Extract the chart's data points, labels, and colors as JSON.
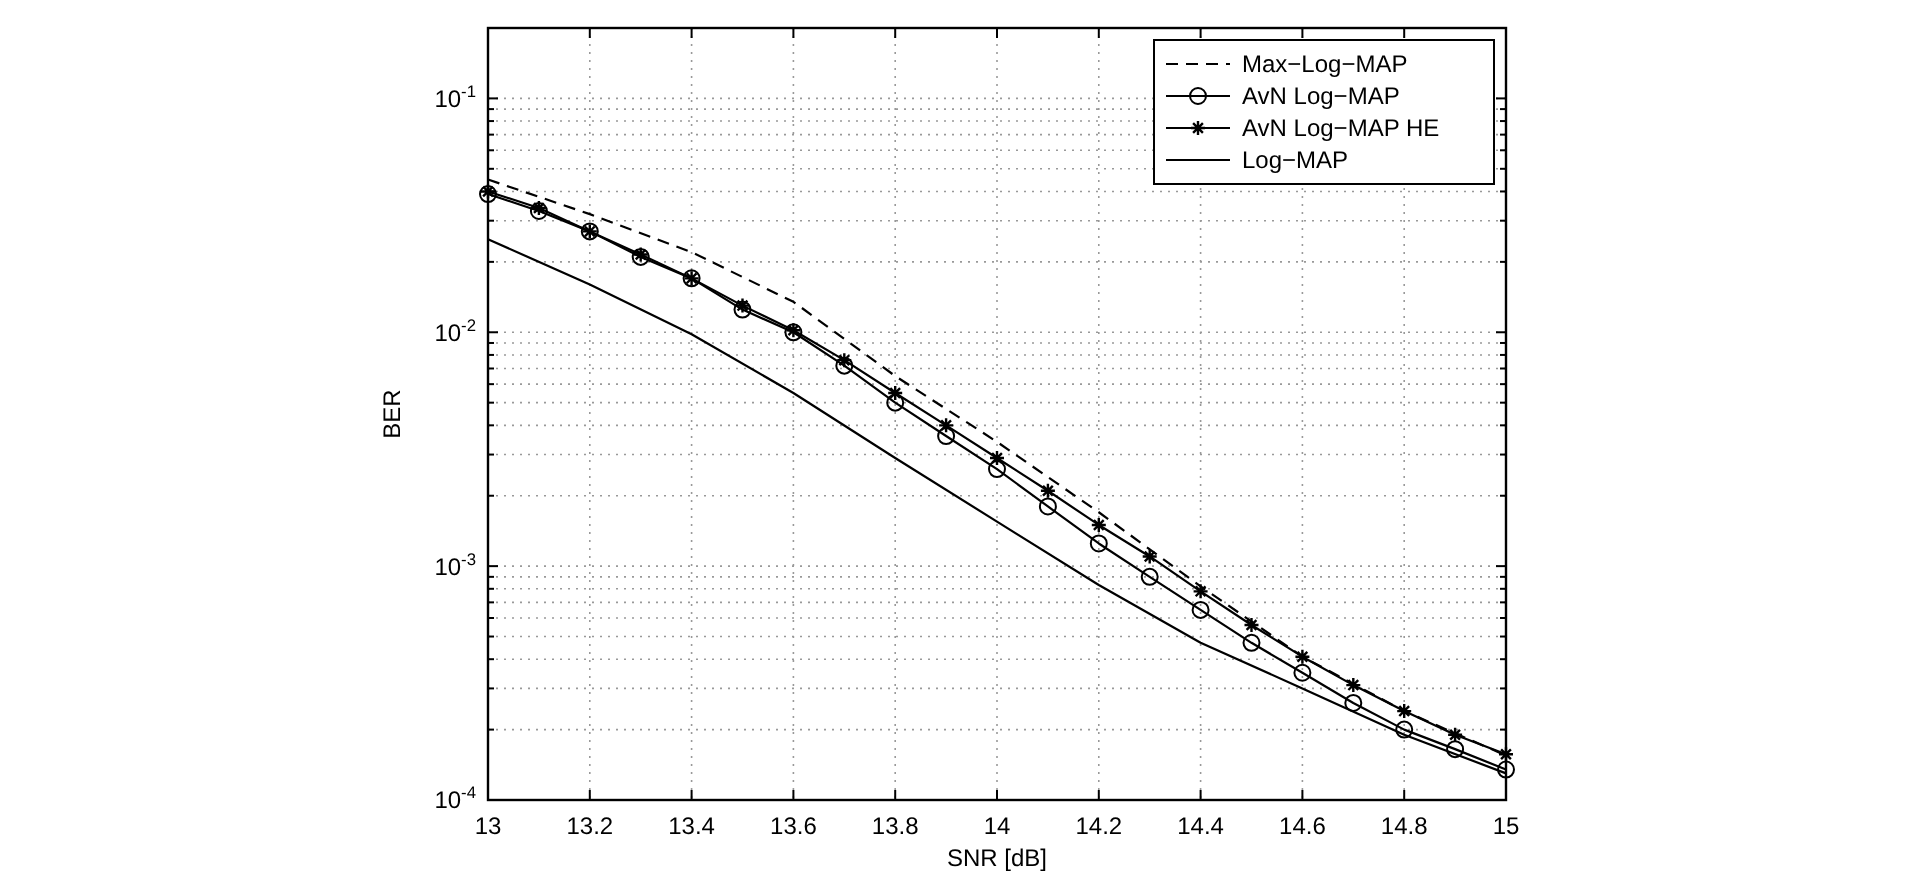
{
  "chart_data": {
    "type": "line",
    "xlabel": "SNR [dB]",
    "ylabel": "BER",
    "log": "y",
    "grid": true,
    "legend": "top right",
    "xlim": [
      13,
      15
    ],
    "ylim": [
      0.0001,
      0.2
    ],
    "xticks": [
      13,
      13.2,
      13.4,
      13.6,
      13.8,
      14,
      14.2,
      14.4,
      14.6,
      14.8,
      15
    ],
    "yticks": [
      {
        "value": 0.0001,
        "label": "10$^{-4}$"
      },
      {
        "value": 0.0002,
        "label": null
      },
      {
        "value": 0.0003,
        "label": null
      },
      {
        "value": 0.0004,
        "label": null
      },
      {
        "value": 0.0005,
        "label": null
      },
      {
        "value": 0.0006,
        "label": null
      },
      {
        "value": 0.0007,
        "label": null
      },
      {
        "value": 0.0008,
        "label": null
      },
      {
        "value": 0.0009,
        "label": null
      },
      {
        "value": 0.001,
        "label": "10$^{-3}$"
      },
      {
        "value": 0.002,
        "label": null
      },
      {
        "value": 0.003,
        "label": null
      },
      {
        "value": 0.004,
        "label": null
      },
      {
        "value": 0.005,
        "label": null
      },
      {
        "value": 0.006,
        "label": null
      },
      {
        "value": 0.007,
        "label": null
      },
      {
        "value": 0.008,
        "label": null
      },
      {
        "value": 0.009,
        "label": null
      },
      {
        "value": 0.01,
        "label": "10$^{-2}$"
      },
      {
        "value": 0.02,
        "label": null
      },
      {
        "value": 0.03,
        "label": null
      },
      {
        "value": 0.04,
        "label": null
      },
      {
        "value": 0.05,
        "label": null
      },
      {
        "value": 0.06,
        "label": null
      },
      {
        "value": 0.07,
        "label": null
      },
      {
        "value": 0.08,
        "label": null
      },
      {
        "value": 0.09,
        "label": null
      },
      {
        "value": 0.1,
        "label": "10$^{-1}$"
      },
      {
        "value": 0.2,
        "label": null
      }
    ],
    "series": [
      {
        "name": "Max−Log−MAP",
        "color": "#000000",
        "line_style": "dashed",
        "marker": "none",
        "x": [
          13,
          13.2,
          13.4,
          13.6,
          13.8,
          14,
          14.2,
          14.4,
          14.6,
          14.8,
          15
        ],
        "values": [
          0.045,
          0.032,
          0.022,
          0.0135,
          0.0065,
          0.0034,
          0.0017,
          0.00082,
          0.00041,
          0.00024,
          0.000155
        ]
      },
      {
        "name": "AvN Log−MAP",
        "color": "#000000",
        "line_style": "solid",
        "marker": "circle",
        "x": [
          13,
          13.1,
          13.2,
          13.3,
          13.4,
          13.5,
          13.6,
          13.7,
          13.8,
          13.9,
          14,
          14.1,
          14.2,
          14.3,
          14.4,
          14.5,
          14.6,
          14.7,
          14.8,
          14.9,
          15
        ],
        "values": [
          0.039,
          0.033,
          0.027,
          0.021,
          0.017,
          0.0125,
          0.01,
          0.0072,
          0.005,
          0.0036,
          0.0026,
          0.0018,
          0.00125,
          0.0009,
          0.00065,
          0.00047,
          0.00035,
          0.00026,
          0.0002,
          0.000165,
          0.000135
        ]
      },
      {
        "name": "AvN Log−MAP HE",
        "color": "#000000",
        "line_style": "solid",
        "marker": "cross",
        "x": [
          13,
          13.1,
          13.2,
          13.3,
          13.4,
          13.5,
          13.6,
          13.7,
          13.8,
          13.9,
          14,
          14.1,
          14.2,
          14.3,
          14.4,
          14.5,
          14.6,
          14.7,
          14.8,
          14.9,
          15
        ],
        "values": [
          0.04,
          0.034,
          0.027,
          0.0215,
          0.017,
          0.013,
          0.0102,
          0.0076,
          0.0055,
          0.004,
          0.0029,
          0.0021,
          0.0015,
          0.0011,
          0.00078,
          0.00056,
          0.00041,
          0.00031,
          0.00024,
          0.00019,
          0.000157
        ]
      },
      {
        "name": "Log−MAP",
        "color": "#000000",
        "line_style": "solid",
        "marker": "none",
        "x": [
          13,
          13.2,
          13.4,
          13.6,
          13.8,
          14,
          14.2,
          14.4,
          14.6,
          14.8,
          15
        ],
        "values": [
          0.025,
          0.016,
          0.0098,
          0.0055,
          0.0029,
          0.00155,
          0.00083,
          0.00047,
          0.0003,
          0.00019,
          0.00013
        ]
      }
    ]
  }
}
